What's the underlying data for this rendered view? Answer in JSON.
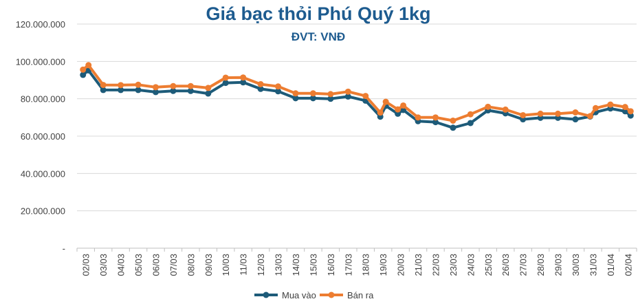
{
  "chart_data": {
    "type": "line",
    "title": "Giá bạc thỏi Phú Quý 1kg",
    "subtitle": "ĐVT: VNĐ",
    "xlabel": "",
    "ylabel": "",
    "ylim": [
      0,
      120000000
    ],
    "y_ticks": [
      {
        "value": 0,
        "label": "-"
      },
      {
        "value": 20000000,
        "label": "20.000.000"
      },
      {
        "value": 40000000,
        "label": "40.000.000"
      },
      {
        "value": 60000000,
        "label": "60.000.000"
      },
      {
        "value": 80000000,
        "label": "80.000.000"
      },
      {
        "value": 100000000,
        "label": "100.000.000"
      },
      {
        "value": 120000000,
        "label": "120.000.000"
      }
    ],
    "x_ticks": [
      "02/03",
      "03/03",
      "04/03",
      "05/03",
      "06/03",
      "07/03",
      "08/03",
      "09/03",
      "10/03",
      "11/03",
      "12/03",
      "13/03",
      "14/03",
      "15/03",
      "16/03",
      "17/03",
      "18/03",
      "19/03",
      "20/03",
      "21/03",
      "22/03",
      "23/03",
      "24/03",
      "25/03",
      "26/03",
      "27/03",
      "28/03",
      "29/03",
      "30/03",
      "31/03",
      "01/04",
      "02/04"
    ],
    "grid": "horizontal",
    "legend_position": "bottom",
    "x": [
      0,
      0,
      1,
      2,
      3,
      4,
      5,
      6,
      7,
      8,
      9,
      10,
      11,
      12,
      13,
      14,
      15,
      16,
      17,
      17,
      18,
      18,
      19,
      20,
      21,
      22,
      23,
      24,
      25,
      26,
      27,
      28,
      29,
      29,
      30,
      31,
      31
    ],
    "series": [
      {
        "name": "Mua vào",
        "color": "#1d5b79",
        "values": [
          92800000,
          95200000,
          84700000,
          84700000,
          84700000,
          83600000,
          84200000,
          84200000,
          82800000,
          88500000,
          88800000,
          85300000,
          84000000,
          80300000,
          80300000,
          80000000,
          81200000,
          79000000,
          70400000,
          76200000,
          72000000,
          74000000,
          68000000,
          67500000,
          64500000,
          67000000,
          73800000,
          72200000,
          69000000,
          69800000,
          69800000,
          69000000,
          70500000,
          72800000,
          74800000,
          73300000,
          71000000
        ]
      },
      {
        "name": "Bán ra",
        "color": "#ed7d31",
        "values": [
          95600000,
          98000000,
          87400000,
          87300000,
          87500000,
          86200000,
          86800000,
          86800000,
          85800000,
          91300000,
          91400000,
          87800000,
          86600000,
          82900000,
          82900000,
          82500000,
          83800000,
          81500000,
          72600000,
          78400000,
          74300000,
          76400000,
          70000000,
          70000000,
          68300000,
          71700000,
          75700000,
          74200000,
          71200000,
          72000000,
          72000000,
          72700000,
          70700000,
          75000000,
          76900000,
          75600000,
          73300000
        ]
      }
    ]
  }
}
